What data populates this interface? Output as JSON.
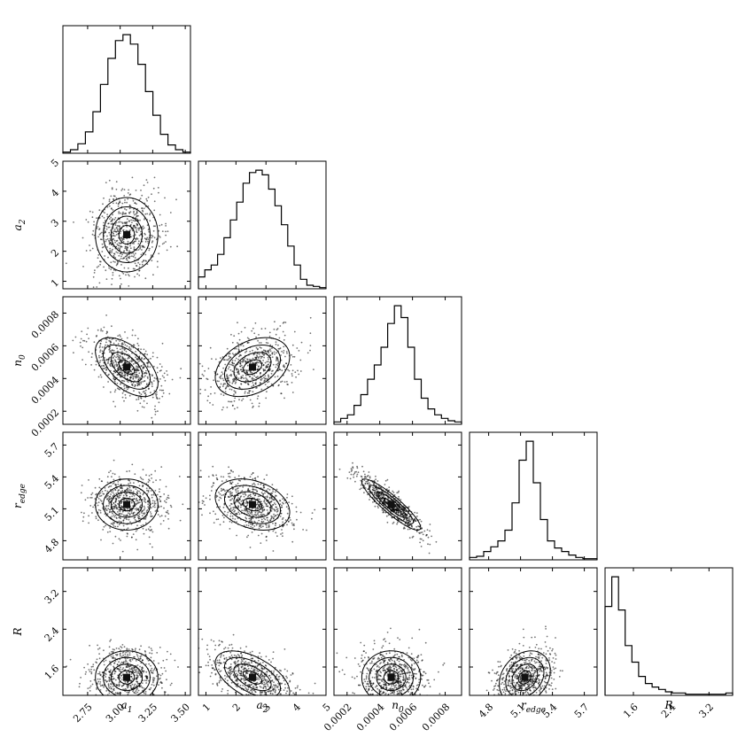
{
  "chart_data": {
    "type": "corner",
    "parameters": [
      {
        "key": "a1",
        "sym": "a",
        "sub": "1",
        "range": [
          2.56,
          3.54
        ],
        "ticks": [
          "2.75",
          "3.00",
          "3.25",
          "3.50"
        ],
        "tick_values": [
          2.75,
          3.0,
          3.25,
          3.5
        ],
        "mean": 3.05,
        "sd": 0.12
      },
      {
        "key": "a2",
        "sym": "a",
        "sub": "2",
        "range": [
          0.75,
          5.0
        ],
        "ticks": [
          "1",
          "2",
          "3",
          "4",
          "5"
        ],
        "tick_values": [
          1,
          2,
          3,
          4,
          5
        ],
        "mean": 2.55,
        "sd": 0.62
      },
      {
        "key": "n0",
        "sym": "n",
        "sub": "0",
        "range": [
          0.00012,
          0.0009
        ],
        "ticks": [
          "0.0002",
          "0.0004",
          "0.0006",
          "0.0008"
        ],
        "tick_values": [
          0.0002,
          0.0004,
          0.0006,
          0.0008
        ],
        "mean": 0.00047,
        "sd": 9e-05
      },
      {
        "key": "redge",
        "sym": "r",
        "sub": "edge",
        "range": [
          4.62,
          5.82
        ],
        "ticks": [
          "4.8",
          "5.1",
          "5.4",
          "5.7"
        ],
        "tick_values": [
          4.8,
          5.1,
          5.4,
          5.7
        ],
        "mean": 5.14,
        "sd": 0.12
      },
      {
        "key": "R",
        "sym": "R",
        "sub": "",
        "range": [
          1.0,
          3.7
        ],
        "ticks": [
          "1.6",
          "2.4",
          "3.2"
        ],
        "tick_values": [
          1.6,
          2.4,
          3.2
        ],
        "mean": 1.38,
        "sd": 0.28
      }
    ],
    "histograms": [
      {
        "param": "a1",
        "counts": [
          1,
          3,
          8,
          18,
          35,
          58,
          80,
          95,
          100,
          92,
          75,
          52,
          32,
          16,
          7,
          3,
          1
        ]
      },
      {
        "param": "a2",
        "counts": [
          10,
          16,
          20,
          29,
          43,
          58,
          73,
          89,
          98,
          100,
          96,
          84,
          70,
          54,
          36,
          20,
          8,
          3,
          2,
          1
        ]
      },
      {
        "param": "n0",
        "counts": [
          2,
          5,
          8,
          16,
          25,
          38,
          50,
          65,
          85,
          100,
          90,
          65,
          38,
          22,
          13,
          8,
          5,
          3,
          2
        ]
      },
      {
        "param": "redge",
        "counts": [
          2,
          3,
          7,
          11,
          16,
          25,
          48,
          84,
          100,
          65,
          34,
          16,
          10,
          7,
          4,
          2,
          1,
          1
        ]
      },
      {
        "param": "R",
        "counts": [
          75,
          100,
          72,
          42,
          28,
          16,
          10,
          7,
          5,
          3,
          2,
          2,
          1,
          1,
          1,
          1,
          1,
          1,
          2
        ]
      }
    ],
    "correlations": {
      "a2|a1": 0.0,
      "n0|a1": -0.55,
      "n0|a2": 0.35,
      "redge|a1": 0.0,
      "redge|a2": -0.3,
      "redge|n0": -0.9,
      "R|a1": 0.0,
      "R|a2": -0.55,
      "R|n0": 0.0,
      "R|redge": 0.25
    },
    "contour_levels_sigma": [
      0.5,
      1.0,
      1.5,
      2.0
    ],
    "grid": false,
    "legend": "none"
  }
}
